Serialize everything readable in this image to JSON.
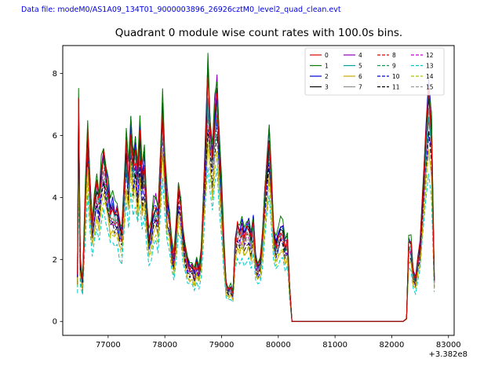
{
  "header": {
    "data_file_label": "Data file: modeM0/AS1A09_134T01_9000003896_26926cztM0_level2_quad_clean.evt"
  },
  "chart_data": {
    "type": "line",
    "title": "Quadrant 0 module wise count rates with 100.0s bins.",
    "xlabel": "",
    "ylabel": "",
    "x_offset_label": "+3.382e8",
    "x_offset_value": 338200000,
    "xlim": [
      76200,
      83100
    ],
    "ylim": [
      -0.45,
      8.9
    ],
    "x_ticks": [
      77000,
      78000,
      79000,
      80000,
      81000,
      82000,
      83000
    ],
    "y_ticks": [
      0,
      2,
      4,
      6,
      8
    ],
    "grid": false,
    "legend_position": "upper right",
    "legend_columns": 4,
    "base_x": [
      76460,
      76480,
      76510,
      76550,
      76600,
      76640,
      76680,
      76720,
      76760,
      76800,
      76840,
      76880,
      76920,
      76960,
      77000,
      77040,
      77080,
      77120,
      77160,
      77200,
      77240,
      77280,
      77320,
      77360,
      77400,
      77440,
      77480,
      77520,
      77560,
      77600,
      77640,
      77680,
      77720,
      77760,
      77800,
      77840,
      77880,
      77920,
      77960,
      78000,
      78040,
      78080,
      78120,
      78160,
      78200,
      78240,
      78280,
      78320,
      78360,
      78400,
      78440,
      78480,
      78520,
      78560,
      78600,
      78640,
      78680,
      78720,
      78760,
      78800,
      78840,
      78880,
      78920,
      78960,
      79000,
      79040,
      79080,
      79120,
      79160,
      79200,
      79240,
      79280,
      79320,
      79360,
      79400,
      79440,
      79480,
      79520,
      79560,
      79600,
      79640,
      79680,
      79720,
      79760,
      79800,
      79840,
      79880,
      79920,
      79960,
      80000,
      80040,
      80080,
      80120,
      80160,
      80200,
      80240,
      80400,
      80800,
      81200,
      81600,
      82000,
      82200,
      82260,
      82300,
      82340,
      82380,
      82420,
      82460,
      82500,
      82540,
      82600,
      82650,
      82700,
      82750
    ],
    "base_y": [
      1.6,
      7.6,
      2.0,
      1.4,
      4.7,
      6.9,
      4.8,
      3.5,
      4.2,
      4.9,
      4.3,
      5.2,
      5.8,
      5.2,
      4.6,
      4.0,
      4.1,
      3.9,
      4.0,
      3.4,
      3.2,
      4.6,
      6.2,
      5.0,
      6.9,
      5.6,
      6.3,
      5.1,
      6.5,
      5.0,
      5.5,
      4.1,
      2.9,
      3.3,
      3.9,
      4.2,
      3.8,
      5.6,
      7.5,
      5.8,
      4.2,
      3.8,
      2.7,
      2.2,
      3.3,
      4.7,
      4.3,
      3.1,
      2.5,
      2.1,
      1.9,
      2.0,
      1.7,
      2.1,
      1.8,
      2.3,
      4.4,
      6.3,
      8.5,
      6.8,
      6.0,
      7.1,
      8.1,
      6.2,
      4.5,
      2.7,
      1.3,
      1.1,
      1.2,
      1.0,
      2.7,
      3.4,
      3.2,
      3.5,
      3.0,
      3.3,
      3.4,
      2.9,
      3.6,
      2.2,
      1.9,
      2.1,
      3.0,
      4.4,
      5.4,
      6.5,
      5.1,
      3.2,
      2.7,
      3.1,
      3.3,
      3.2,
      2.7,
      2.9,
      1.2,
      0,
      0,
      0,
      0,
      0,
      0,
      0,
      0.1,
      2.8,
      2.7,
      1.7,
      1.5,
      2.2,
      2.7,
      4.3,
      6.4,
      7.9,
      6.8,
      1.5
    ],
    "series": [
      {
        "name": "0",
        "color": "#e00000",
        "dashed": false,
        "scale": 0.93
      },
      {
        "name": "1",
        "color": "#007a00",
        "dashed": false,
        "scale": 1.0
      },
      {
        "name": "2",
        "color": "#0000dd",
        "dashed": false,
        "scale": 0.96
      },
      {
        "name": "3",
        "color": "#000000",
        "dashed": false,
        "scale": 0.92
      },
      {
        "name": "4",
        "color": "#8800bb",
        "dashed": false,
        "scale": 0.95
      },
      {
        "name": "5",
        "color": "#00a0a0",
        "dashed": false,
        "scale": 0.9
      },
      {
        "name": "6",
        "color": "#c8a800",
        "dashed": false,
        "scale": 0.72
      },
      {
        "name": "7",
        "color": "#8c8c8c",
        "dashed": false,
        "scale": 0.88
      },
      {
        "name": "8",
        "color": "#e00000",
        "dashed": true,
        "scale": 0.85
      },
      {
        "name": "9",
        "color": "#00a050",
        "dashed": true,
        "scale": 0.87
      },
      {
        "name": "10",
        "color": "#0000dd",
        "dashed": true,
        "scale": 0.8
      },
      {
        "name": "11",
        "color": "#000000",
        "dashed": true,
        "scale": 0.78
      },
      {
        "name": "12",
        "color": "#cc00cc",
        "dashed": true,
        "scale": 0.83
      },
      {
        "name": "13",
        "color": "#00c8c8",
        "dashed": true,
        "scale": 0.62
      },
      {
        "name": "14",
        "color": "#a0c800",
        "dashed": true,
        "scale": 0.7
      },
      {
        "name": "15",
        "color": "#999999",
        "dashed": true,
        "scale": 0.82
      }
    ]
  }
}
